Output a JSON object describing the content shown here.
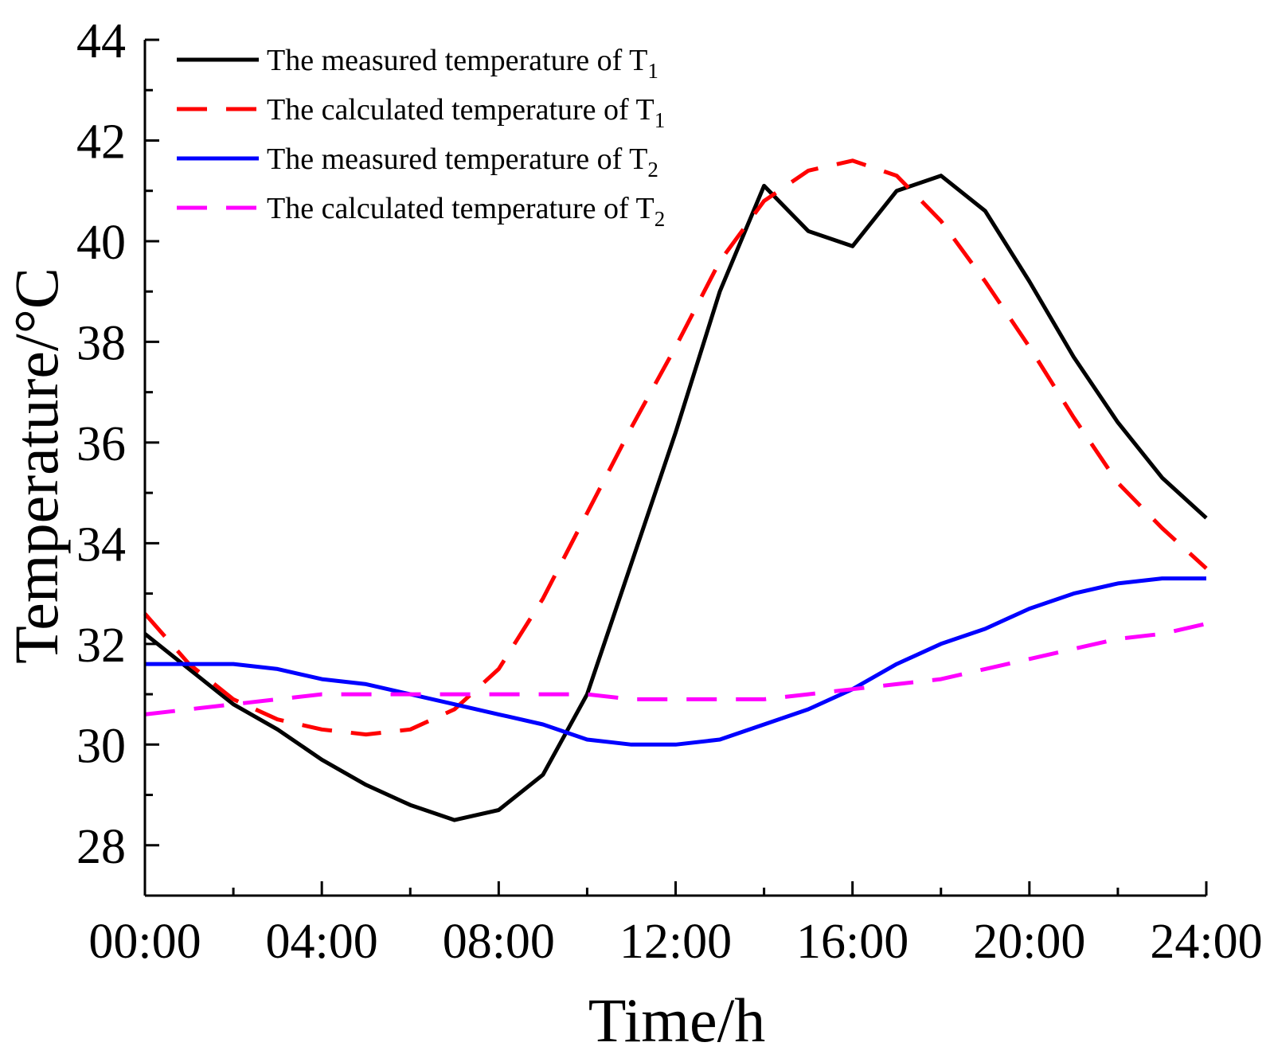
{
  "chart_data": {
    "type": "line",
    "xlabel": "Time/h",
    "ylabel": "Temperature/°C",
    "xlim": [
      0,
      24
    ],
    "ylim": [
      27,
      44
    ],
    "x_ticks": [
      0,
      4,
      8,
      12,
      16,
      20,
      24
    ],
    "x_tick_labels": [
      "00:00",
      "04:00",
      "08:00",
      "12:00",
      "16:00",
      "20:00",
      "24:00"
    ],
    "y_ticks": [
      28,
      30,
      32,
      34,
      36,
      38,
      40,
      42,
      44
    ],
    "y_tick_labels": [
      "28",
      "30",
      "32",
      "34",
      "36",
      "38",
      "40",
      "42",
      "44"
    ],
    "grid": false,
    "legend_position": "top-left",
    "series": [
      {
        "name_prefix": "The measured temperature of T",
        "name_sub": "1",
        "color": "#000000",
        "dash": "solid",
        "x": [
          0,
          1,
          2,
          3,
          4,
          5,
          6,
          7,
          8,
          9,
          10,
          11,
          12,
          13,
          14,
          15,
          16,
          17,
          18,
          19,
          20,
          21,
          22,
          23,
          24
        ],
        "values": [
          32.2,
          31.5,
          30.8,
          30.3,
          29.7,
          29.2,
          28.8,
          28.5,
          28.7,
          29.4,
          31.0,
          33.6,
          36.2,
          39.0,
          41.1,
          40.2,
          39.9,
          41.0,
          41.3,
          40.6,
          39.2,
          37.7,
          36.4,
          35.3,
          34.5
        ]
      },
      {
        "name_prefix": "The calculated temperature of T",
        "name_sub": "1",
        "color": "#ff0000",
        "dash": "dashed",
        "x": [
          0,
          1,
          2,
          3,
          4,
          5,
          6,
          7,
          8,
          9,
          10,
          11,
          12,
          13,
          14,
          15,
          16,
          17,
          18,
          19,
          20,
          21,
          22,
          23,
          24
        ],
        "values": [
          32.6,
          31.6,
          30.9,
          30.5,
          30.3,
          30.2,
          30.3,
          30.7,
          31.5,
          32.9,
          34.6,
          36.3,
          37.9,
          39.6,
          40.8,
          41.4,
          41.6,
          41.3,
          40.4,
          39.2,
          37.9,
          36.5,
          35.2,
          34.3,
          33.5
        ]
      },
      {
        "name_prefix": "The measured temperature of T",
        "name_sub": "2",
        "color": "#0000ff",
        "dash": "solid",
        "x": [
          0,
          1,
          2,
          3,
          4,
          5,
          6,
          7,
          8,
          9,
          10,
          11,
          12,
          13,
          14,
          15,
          16,
          17,
          18,
          19,
          20,
          21,
          22,
          23,
          24
        ],
        "values": [
          31.6,
          31.6,
          31.6,
          31.5,
          31.3,
          31.2,
          31.0,
          30.8,
          30.6,
          30.4,
          30.1,
          30.0,
          30.0,
          30.1,
          30.4,
          30.7,
          31.1,
          31.6,
          32.0,
          32.3,
          32.7,
          33.0,
          33.2,
          33.3,
          33.3
        ]
      },
      {
        "name_prefix": "The calculated temperature of T",
        "name_sub": "2",
        "color": "#ff00ff",
        "dash": "dashed",
        "x": [
          0,
          1,
          2,
          3,
          4,
          5,
          6,
          7,
          8,
          9,
          10,
          11,
          12,
          13,
          14,
          15,
          16,
          17,
          18,
          19,
          20,
          21,
          22,
          23,
          24
        ],
        "values": [
          30.6,
          30.7,
          30.8,
          30.9,
          31.0,
          31.0,
          31.0,
          31.0,
          31.0,
          31.0,
          31.0,
          30.9,
          30.9,
          30.9,
          30.9,
          31.0,
          31.1,
          31.2,
          31.3,
          31.5,
          31.7,
          31.9,
          32.1,
          32.2,
          32.4
        ]
      }
    ]
  }
}
